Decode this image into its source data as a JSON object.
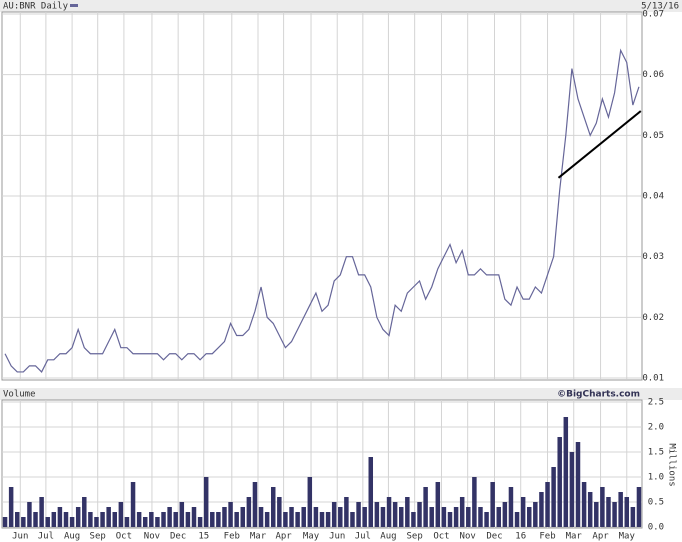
{
  "chart_data": [
    {
      "type": "line",
      "title": "AU:BNR Daily",
      "date": "5/13/16",
      "series": [
        {
          "name": "AU:BNR",
          "color": "#666699",
          "values": [
            0.014,
            0.012,
            0.011,
            0.011,
            0.012,
            0.012,
            0.011,
            0.013,
            0.013,
            0.014,
            0.014,
            0.015,
            0.018,
            0.015,
            0.014,
            0.014,
            0.014,
            0.016,
            0.018,
            0.015,
            0.015,
            0.014,
            0.014,
            0.014,
            0.014,
            0.014,
            0.013,
            0.014,
            0.014,
            0.013,
            0.014,
            0.014,
            0.013,
            0.014,
            0.014,
            0.015,
            0.016,
            0.019,
            0.017,
            0.017,
            0.018,
            0.021,
            0.025,
            0.02,
            0.019,
            0.017,
            0.015,
            0.016,
            0.018,
            0.02,
            0.022,
            0.024,
            0.021,
            0.022,
            0.026,
            0.027,
            0.03,
            0.03,
            0.027,
            0.027,
            0.025,
            0.02,
            0.018,
            0.017,
            0.022,
            0.021,
            0.024,
            0.025,
            0.026,
            0.023,
            0.025,
            0.028,
            0.03,
            0.032,
            0.029,
            0.031,
            0.027,
            0.027,
            0.028,
            0.027,
            0.027,
            0.027,
            0.023,
            0.022,
            0.025,
            0.023,
            0.023,
            0.025,
            0.024,
            0.027,
            0.03,
            0.041,
            0.05,
            0.061,
            0.056,
            0.053,
            0.05,
            0.052,
            0.056,
            0.053,
            0.057,
            0.064,
            0.062,
            0.055,
            0.058
          ]
        }
      ],
      "trendline": {
        "x": [
          91.3,
          104.8
        ],
        "y": [
          0.043,
          0.054
        ]
      },
      "xlim": [
        0,
        105
      ],
      "xticks": [
        3,
        7.2,
        11.5,
        15.7,
        20,
        24.6,
        28.9,
        33.1,
        37.7,
        42,
        46.2,
        50.7,
        55,
        59.2,
        63.4,
        67.7,
        72.1,
        76.4,
        80.8,
        85.1,
        89.5,
        93.8,
        98.2,
        102.5
      ],
      "ylim": [
        0.01,
        0.07
      ],
      "yticks": [
        0.01,
        0.02,
        0.03,
        0.04,
        0.05,
        0.06,
        0.07
      ],
      "grid": true
    },
    {
      "type": "bar",
      "title": "Volume",
      "credit": "©BigCharts.com",
      "y_label": "Millions",
      "color": "#333366",
      "values": [
        0.2,
        0.8,
        0.3,
        0.2,
        0.5,
        0.3,
        0.6,
        0.2,
        0.3,
        0.4,
        0.3,
        0.2,
        0.4,
        0.6,
        0.3,
        0.2,
        0.3,
        0.4,
        0.3,
        0.5,
        0.2,
        0.9,
        0.3,
        0.2,
        0.3,
        0.2,
        0.3,
        0.4,
        0.3,
        0.5,
        0.3,
        0.4,
        0.2,
        1.0,
        0.3,
        0.3,
        0.4,
        0.5,
        0.3,
        0.4,
        0.6,
        0.9,
        0.4,
        0.3,
        0.8,
        0.6,
        0.3,
        0.4,
        0.3,
        0.4,
        1.0,
        0.4,
        0.3,
        0.3,
        0.5,
        0.4,
        0.6,
        0.3,
        0.5,
        0.4,
        1.4,
        0.5,
        0.4,
        0.6,
        0.5,
        0.4,
        0.6,
        0.3,
        0.5,
        0.8,
        0.4,
        0.9,
        0.4,
        0.3,
        0.4,
        0.6,
        0.4,
        1.0,
        0.4,
        0.3,
        0.9,
        0.4,
        0.5,
        0.8,
        0.3,
        0.6,
        0.4,
        0.5,
        0.7,
        0.9,
        1.2,
        1.8,
        2.2,
        1.5,
        1.7,
        0.9,
        0.7,
        0.5,
        0.8,
        0.6,
        0.5,
        0.7,
        0.6,
        0.4,
        0.8
      ],
      "xlim": [
        0,
        105
      ],
      "xticks": [
        {
          "value": 3,
          "label": "Jun"
        },
        {
          "value": 7.2,
          "label": "Jul"
        },
        {
          "value": 11.5,
          "label": "Aug"
        },
        {
          "value": 15.7,
          "label": "Sep"
        },
        {
          "value": 20,
          "label": "Oct"
        },
        {
          "value": 24.6,
          "label": "Nov"
        },
        {
          "value": 28.9,
          "label": "Dec"
        },
        {
          "value": 33.1,
          "label": "15"
        },
        {
          "value": 37.7,
          "label": "Feb"
        },
        {
          "value": 42,
          "label": "Mar"
        },
        {
          "value": 46.2,
          "label": "Apr"
        },
        {
          "value": 50.7,
          "label": "May"
        },
        {
          "value": 55,
          "label": "Jun"
        },
        {
          "value": 59.2,
          "label": "Jul"
        },
        {
          "value": 63.4,
          "label": "Aug"
        },
        {
          "value": 67.7,
          "label": "Sep"
        },
        {
          "value": 72.1,
          "label": "Oct"
        },
        {
          "value": 76.4,
          "label": "Nov"
        },
        {
          "value": 80.8,
          "label": "Dec"
        },
        {
          "value": 85.1,
          "label": "16"
        },
        {
          "value": 89.5,
          "label": "Feb"
        },
        {
          "value": 93.8,
          "label": "Mar"
        },
        {
          "value": 98.2,
          "label": "Apr"
        },
        {
          "value": 102.5,
          "label": "May"
        }
      ],
      "ylim": [
        0,
        2.5
      ],
      "yticks": [
        {
          "value": 0,
          "label": "0.0"
        },
        0.5,
        {
          "value": 1,
          "label": "1.0"
        },
        1.5,
        {
          "value": 2,
          "label": "2.0"
        },
        2.5
      ],
      "grid": true
    }
  ]
}
